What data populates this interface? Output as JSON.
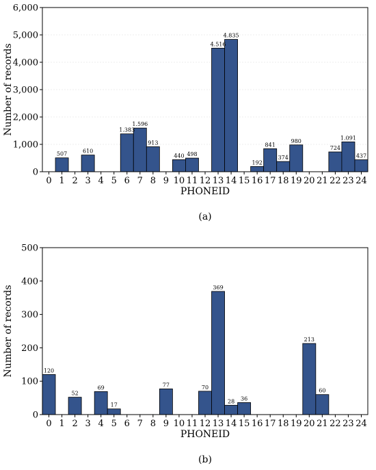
{
  "charts": [
    {
      "panel": "(a)",
      "chart_data": {
        "type": "bar",
        "categories": [
          "0",
          "1",
          "2",
          "3",
          "4",
          "5",
          "6",
          "7",
          "8",
          "9",
          "10",
          "11",
          "12",
          "13",
          "14",
          "15",
          "16",
          "17",
          "18",
          "19",
          "20",
          "21",
          "22",
          "23",
          "24"
        ],
        "values": [
          0,
          507,
          0,
          610,
          0,
          0,
          1383,
          1596,
          913,
          0,
          440,
          498,
          0,
          4516,
          4835,
          0,
          192,
          841,
          374,
          980,
          0,
          0,
          724,
          1091,
          437
        ],
        "data_labels": [
          "",
          "507",
          "",
          "610",
          "",
          "",
          "1.383",
          "1.596",
          "913",
          "",
          "440",
          "498",
          "",
          "4.516",
          "4.835",
          "",
          "192",
          "841",
          "374",
          "980",
          "",
          "",
          "724",
          "1.091",
          "437"
        ],
        "xlabel": "PHONEID",
        "ylabel": "Number of records",
        "ylim": [
          0,
          6000
        ],
        "yticks": [
          0,
          1000,
          2000,
          3000,
          4000,
          5000,
          6000
        ],
        "ytick_labels": [
          "0",
          "1,000",
          "2,000",
          "3,000",
          "4,000",
          "5,000",
          "6,000"
        ],
        "grid": true,
        "bar_color": "#34548c"
      }
    },
    {
      "panel": "(b)",
      "chart_data": {
        "type": "bar",
        "categories": [
          "0",
          "1",
          "2",
          "3",
          "4",
          "5",
          "6",
          "7",
          "8",
          "9",
          "10",
          "11",
          "12",
          "13",
          "14",
          "15",
          "16",
          "17",
          "18",
          "19",
          "20",
          "21",
          "22",
          "23",
          "24"
        ],
        "values": [
          120,
          0,
          52,
          0,
          69,
          17,
          0,
          0,
          0,
          77,
          0,
          0,
          70,
          369,
          28,
          36,
          0,
          0,
          0,
          0,
          213,
          60,
          0,
          0,
          0
        ],
        "data_labels": [
          "120",
          "",
          "52",
          "",
          "69",
          "17",
          "",
          "",
          "",
          "77",
          "",
          "",
          "70",
          "369",
          "28",
          "36",
          "",
          "",
          "",
          "",
          "213",
          "60",
          "",
          "",
          ""
        ],
        "xlabel": "PHONEID",
        "ylabel": "Number of records",
        "ylim": [
          0,
          500
        ],
        "yticks": [
          0,
          100,
          200,
          300,
          400,
          500
        ],
        "ytick_labels": [
          "0",
          "100",
          "200",
          "300",
          "400",
          "500"
        ],
        "grid": false,
        "bar_color": "#34548c"
      }
    }
  ]
}
